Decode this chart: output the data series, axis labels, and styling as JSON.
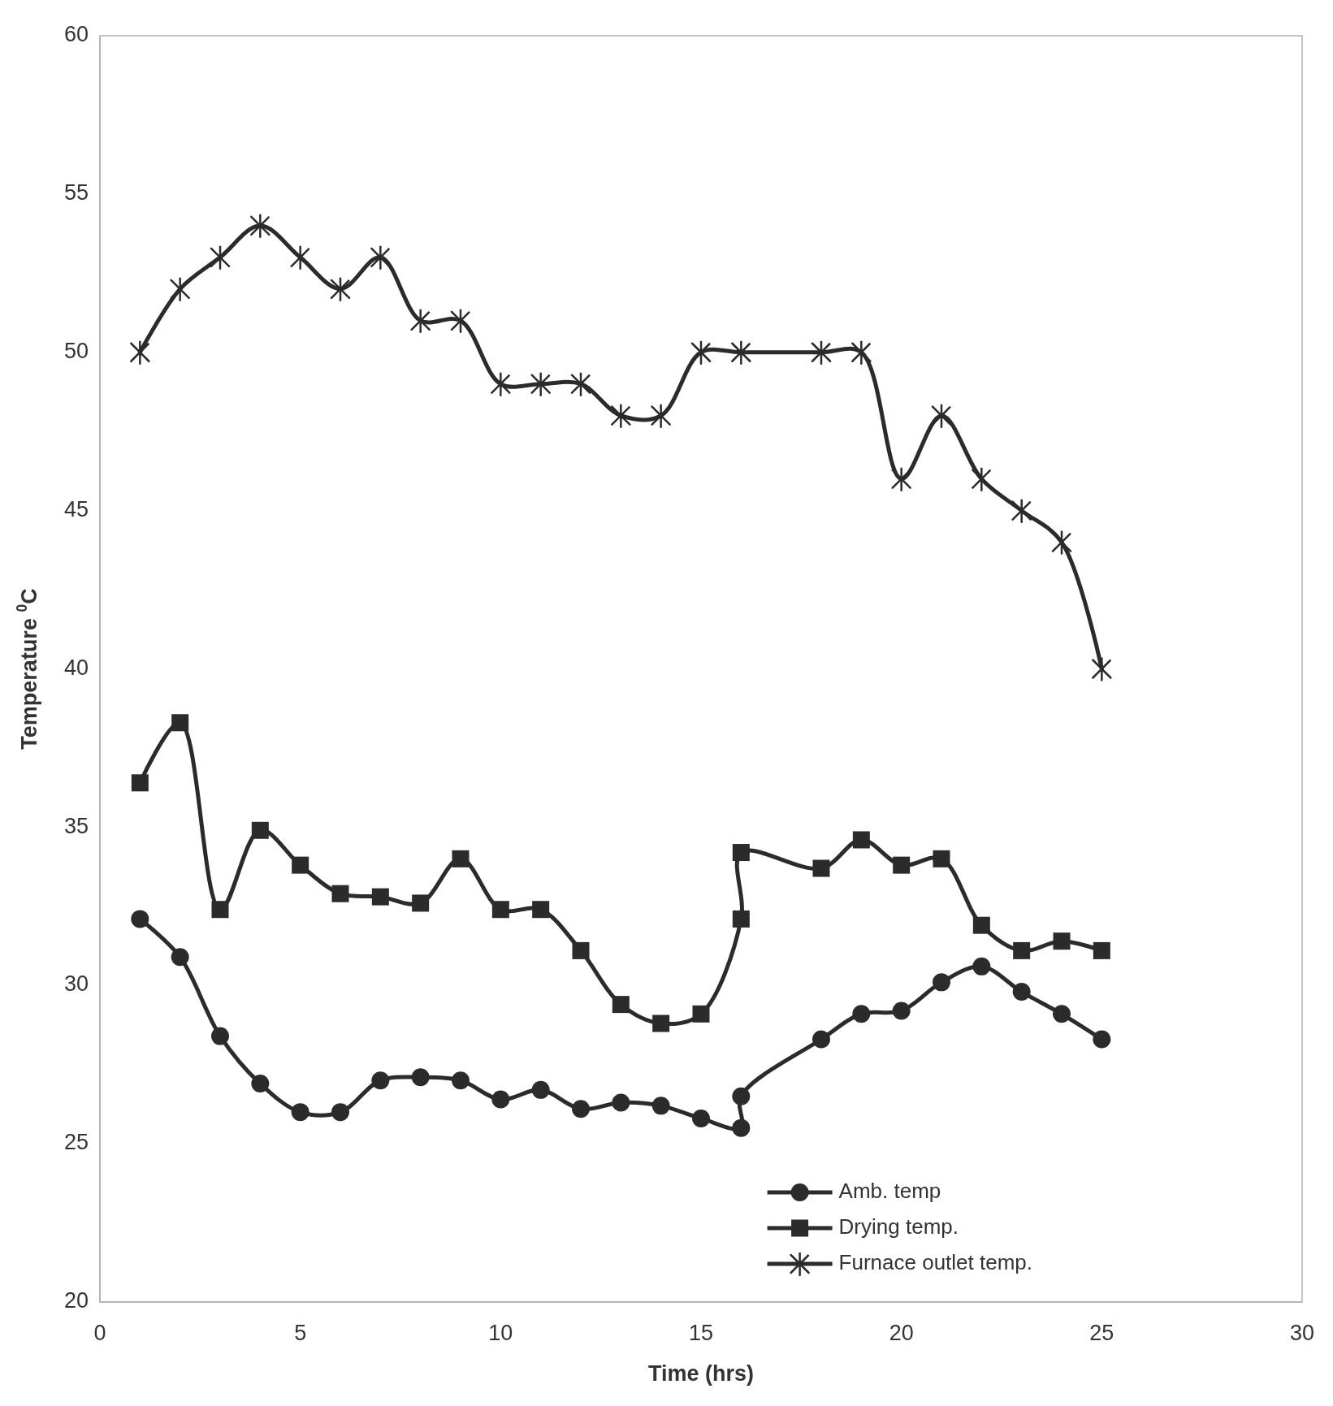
{
  "chart_data": {
    "type": "line",
    "xlabel": "Time (hrs)",
    "ylabel": "Temperature $^{0}$C",
    "xlim": [
      0,
      30
    ],
    "xticks": [
      0,
      5,
      10,
      15,
      20,
      25,
      30
    ],
    "ylim": [
      20,
      60
    ],
    "yticks": [
      20,
      25,
      30,
      35,
      40,
      45,
      50,
      55,
      60
    ],
    "legend": "bottom right",
    "line_style": "solid",
    "series": [
      {
        "name": "Amb. temp",
        "color": "#2b2b2b",
        "marker": "circle",
        "x": [
          1,
          2,
          3,
          4,
          5,
          6,
          7,
          8,
          9,
          10,
          11,
          12,
          13,
          14,
          15,
          16,
          16,
          18,
          19,
          20,
          21,
          22,
          23,
          24,
          25
        ],
        "values": [
          32.1,
          30.9,
          28.4,
          26.9,
          26.0,
          26.0,
          27.0,
          27.1,
          27.0,
          26.4,
          26.7,
          26.1,
          26.3,
          26.2,
          25.8,
          25.5,
          26.5,
          28.3,
          29.1,
          29.2,
          30.1,
          30.6,
          29.8,
          29.1,
          28.3
        ]
      },
      {
        "name": "Drying temp.",
        "color": "#2b2b2b",
        "marker": "square",
        "x": [
          1,
          2,
          3,
          4,
          5,
          6,
          7,
          8,
          9,
          10,
          11,
          12,
          13,
          14,
          15,
          16,
          16,
          18,
          19,
          20,
          21,
          22,
          23,
          24,
          25
        ],
        "values": [
          36.4,
          38.3,
          32.4,
          34.9,
          33.8,
          32.9,
          32.8,
          32.6,
          34.0,
          32.4,
          32.4,
          31.1,
          29.4,
          28.8,
          29.1,
          32.1,
          34.2,
          33.7,
          34.6,
          33.8,
          34.0,
          31.9,
          31.1,
          31.4,
          31.1
        ]
      },
      {
        "name": "Furnace outlet temp.",
        "color": "#2b2b2b",
        "marker": "cross",
        "x": [
          1,
          2,
          3,
          4,
          5,
          6,
          7,
          8,
          9,
          10,
          11,
          12,
          13,
          14,
          15,
          16,
          18,
          19,
          20,
          21,
          22,
          23,
          24,
          25
        ],
        "values": [
          50,
          52,
          53,
          54,
          53,
          52,
          53,
          51,
          51,
          49,
          49,
          49,
          48,
          48,
          50,
          50,
          50,
          50,
          46,
          48,
          46,
          45,
          44,
          40
        ]
      }
    ]
  }
}
